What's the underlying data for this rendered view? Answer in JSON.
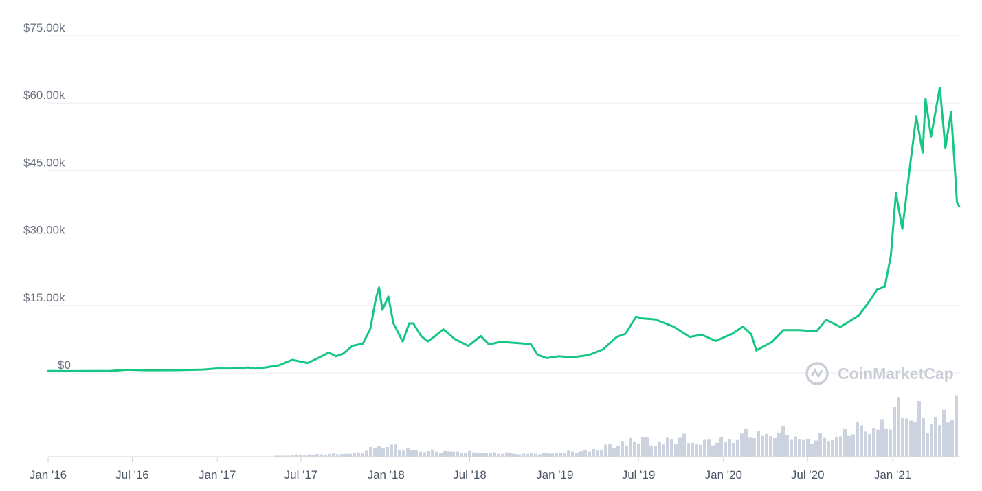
{
  "chart_data": {
    "type": "line",
    "title": "",
    "xlabel": "",
    "ylabel": "",
    "ylim": [
      0,
      75000
    ],
    "grid": true,
    "y_ticks": [
      {
        "value": 0,
        "label": "$0"
      },
      {
        "value": 15000,
        "label": "$15.00k"
      },
      {
        "value": 30000,
        "label": "$30.00k"
      },
      {
        "value": 45000,
        "label": "$45.00k"
      },
      {
        "value": 60000,
        "label": "$60.00k"
      },
      {
        "value": 75000,
        "label": "$75.00k"
      }
    ],
    "x_ticks": [
      {
        "date": "2016-01-01",
        "label": "Jan '16"
      },
      {
        "date": "2016-07-01",
        "label": "Jul '16"
      },
      {
        "date": "2017-01-01",
        "label": "Jan '17"
      },
      {
        "date": "2017-07-01",
        "label": "Jul '17"
      },
      {
        "date": "2018-01-01",
        "label": "Jan '18"
      },
      {
        "date": "2018-07-01",
        "label": "Jul '18"
      },
      {
        "date": "2019-01-01",
        "label": "Jan '19"
      },
      {
        "date": "2019-07-01",
        "label": "Jul '19"
      },
      {
        "date": "2020-01-01",
        "label": "Jan '20"
      },
      {
        "date": "2020-07-01",
        "label": "Jul '20"
      },
      {
        "date": "2021-01-01",
        "label": "Jan '21"
      }
    ],
    "series": [
      {
        "color": "#16c784",
        "points": [
          [
            "2016-01-01",
            430
          ],
          [
            "2016-02-15",
            400
          ],
          [
            "2016-04-01",
            420
          ],
          [
            "2016-05-15",
            450
          ],
          [
            "2016-06-20",
            700
          ],
          [
            "2016-08-01",
            600
          ],
          [
            "2016-10-01",
            610
          ],
          [
            "2016-12-01",
            750
          ],
          [
            "2017-01-01",
            1000
          ],
          [
            "2017-02-01",
            980
          ],
          [
            "2017-03-10",
            1200
          ],
          [
            "2017-03-25",
            950
          ],
          [
            "2017-04-15",
            1200
          ],
          [
            "2017-05-15",
            1700
          ],
          [
            "2017-06-12",
            2900
          ],
          [
            "2017-07-15",
            2200
          ],
          [
            "2017-08-05",
            3200
          ],
          [
            "2017-08-30",
            4500
          ],
          [
            "2017-09-15",
            3700
          ],
          [
            "2017-10-01",
            4300
          ],
          [
            "2017-10-20",
            6000
          ],
          [
            "2017-11-12",
            6500
          ],
          [
            "2017-11-28",
            9800
          ],
          [
            "2017-12-10",
            16500
          ],
          [
            "2017-12-17",
            19000
          ],
          [
            "2017-12-24",
            14000
          ],
          [
            "2018-01-06",
            17000
          ],
          [
            "2018-01-17",
            11000
          ],
          [
            "2018-02-06",
            7000
          ],
          [
            "2018-02-20",
            11000
          ],
          [
            "2018-03-01",
            11000
          ],
          [
            "2018-03-18",
            8200
          ],
          [
            "2018-04-01",
            7000
          ],
          [
            "2018-04-15",
            8000
          ],
          [
            "2018-05-05",
            9700
          ],
          [
            "2018-05-30",
            7500
          ],
          [
            "2018-06-28",
            6000
          ],
          [
            "2018-07-25",
            8200
          ],
          [
            "2018-08-12",
            6300
          ],
          [
            "2018-09-05",
            6900
          ],
          [
            "2018-10-15",
            6600
          ],
          [
            "2018-11-10",
            6400
          ],
          [
            "2018-11-25",
            4000
          ],
          [
            "2018-12-15",
            3300
          ],
          [
            "2019-01-10",
            3700
          ],
          [
            "2019-02-07",
            3450
          ],
          [
            "2019-03-15",
            3950
          ],
          [
            "2019-04-15",
            5200
          ],
          [
            "2019-05-15",
            8000
          ],
          [
            "2019-06-03",
            8700
          ],
          [
            "2019-06-26",
            12500
          ],
          [
            "2019-07-10",
            12100
          ],
          [
            "2019-08-06",
            11900
          ],
          [
            "2019-09-15",
            10300
          ],
          [
            "2019-10-20",
            8000
          ],
          [
            "2019-11-15",
            8500
          ],
          [
            "2019-12-15",
            7100
          ],
          [
            "2020-01-20",
            8700
          ],
          [
            "2020-02-12",
            10300
          ],
          [
            "2020-03-01",
            8600
          ],
          [
            "2020-03-12",
            5000
          ],
          [
            "2020-04-15",
            6900
          ],
          [
            "2020-05-10",
            9500
          ],
          [
            "2020-06-15",
            9500
          ],
          [
            "2020-07-20",
            9200
          ],
          [
            "2020-08-10",
            11800
          ],
          [
            "2020-09-10",
            10200
          ],
          [
            "2020-10-20",
            12800
          ],
          [
            "2020-11-12",
            16000
          ],
          [
            "2020-11-28",
            18500
          ],
          [
            "2020-12-15",
            19200
          ],
          [
            "2020-12-28",
            26000
          ],
          [
            "2021-01-08",
            40000
          ],
          [
            "2021-01-22",
            32000
          ],
          [
            "2021-02-08",
            46500
          ],
          [
            "2021-02-21",
            57000
          ],
          [
            "2021-03-07",
            49000
          ],
          [
            "2021-03-13",
            61000
          ],
          [
            "2021-03-25",
            52500
          ],
          [
            "2021-04-13",
            63500
          ],
          [
            "2021-04-25",
            50000
          ],
          [
            "2021-05-07",
            58000
          ],
          [
            "2021-05-13",
            49500
          ],
          [
            "2021-05-20",
            38000
          ],
          [
            "2021-05-25",
            37000
          ]
        ]
      }
    ],
    "volume": [
      [
        "2017-06-01",
        1.5
      ],
      [
        "2017-09-01",
        2.5
      ],
      [
        "2017-11-01",
        3.5
      ],
      [
        "2017-12-01",
        8
      ],
      [
        "2017-12-20",
        11
      ],
      [
        "2018-01-10",
        10
      ],
      [
        "2018-02-01",
        7
      ],
      [
        "2018-03-15",
        5
      ],
      [
        "2018-05-01",
        5
      ],
      [
        "2018-07-01",
        4
      ],
      [
        "2018-10-01",
        3
      ],
      [
        "2018-12-01",
        3
      ],
      [
        "2019-03-01",
        5
      ],
      [
        "2019-05-01",
        10
      ],
      [
        "2019-06-25",
        17
      ],
      [
        "2019-08-01",
        13
      ],
      [
        "2019-10-01",
        17
      ],
      [
        "2019-11-01",
        13
      ],
      [
        "2019-12-20",
        14
      ],
      [
        "2020-03-01",
        22
      ],
      [
        "2020-03-15",
        20
      ],
      [
        "2020-05-15",
        22
      ],
      [
        "2020-06-15",
        15
      ],
      [
        "2020-08-01",
        17
      ],
      [
        "2020-09-01",
        18
      ],
      [
        "2020-10-01",
        25
      ],
      [
        "2020-11-15",
        28
      ],
      [
        "2020-12-15",
        27
      ],
      [
        "2021-01-10",
        48
      ],
      [
        "2021-01-25",
        38
      ],
      [
        "2021-02-25",
        40
      ],
      [
        "2021-03-10",
        29
      ],
      [
        "2021-04-01",
        32
      ],
      [
        "2021-04-20",
        42
      ],
      [
        "2021-05-10",
        45
      ],
      [
        "2021-05-25",
        46
      ]
    ],
    "watermark": "CoinMarketCap"
  }
}
